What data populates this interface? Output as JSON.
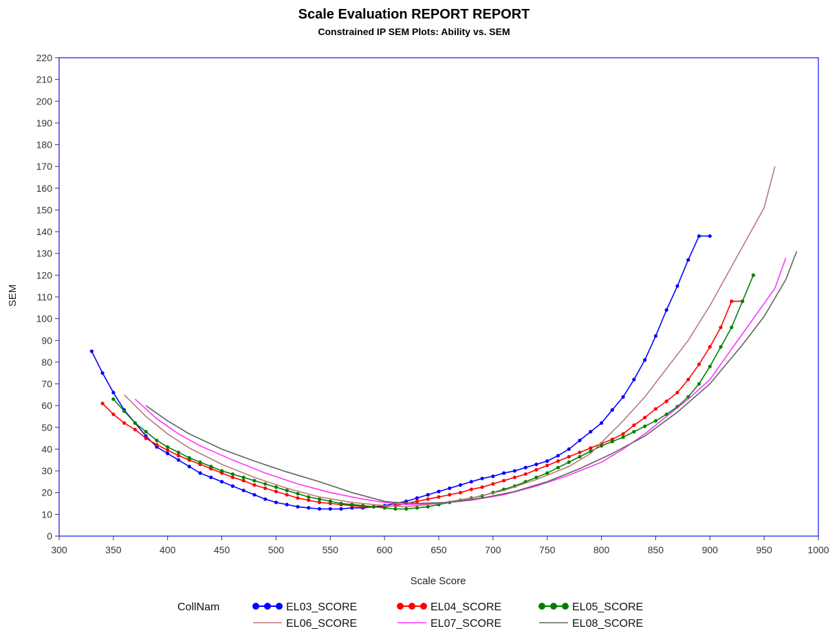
{
  "chart_data": {
    "type": "line",
    "title": "Scale Evaluation REPORT REPORT",
    "subtitle": "Constrained IP SEM Plots: Ability vs. SEM",
    "xlabel": "Scale Score",
    "ylabel": "SEM",
    "xlim": [
      300,
      1000
    ],
    "ylim": [
      0,
      220
    ],
    "xticks": [
      "300",
      "350",
      "400",
      "450",
      "500",
      "550",
      "600",
      "650",
      "700",
      "750",
      "800",
      "850",
      "900",
      "950",
      "1000"
    ],
    "yticks": [
      "0",
      "10",
      "20",
      "30",
      "40",
      "50",
      "60",
      "70",
      "80",
      "90",
      "100",
      "110",
      "120",
      "130",
      "140",
      "150",
      "160",
      "170",
      "180",
      "190",
      "200",
      "210",
      "220"
    ],
    "grid": false,
    "legend": {
      "placement": "bottom",
      "title": "CollNam"
    },
    "series": [
      {
        "name": "EL03_SCORE",
        "color": "#0000ff",
        "markers": true,
        "points": [
          [
            330,
            85
          ],
          [
            340,
            75
          ],
          [
            350,
            66
          ],
          [
            360,
            58
          ],
          [
            370,
            52
          ],
          [
            380,
            46
          ],
          [
            390,
            41
          ],
          [
            400,
            38
          ],
          [
            410,
            35
          ],
          [
            420,
            32
          ],
          [
            430,
            29
          ],
          [
            440,
            27
          ],
          [
            450,
            25
          ],
          [
            460,
            23
          ],
          [
            470,
            21
          ],
          [
            480,
            19
          ],
          [
            490,
            17
          ],
          [
            500,
            15.5
          ],
          [
            510,
            14.5
          ],
          [
            520,
            13.5
          ],
          [
            530,
            13
          ],
          [
            540,
            12.5
          ],
          [
            550,
            12.5
          ],
          [
            560,
            12.5
          ],
          [
            570,
            13
          ],
          [
            580,
            13
          ],
          [
            590,
            13.5
          ],
          [
            600,
            14
          ],
          [
            610,
            15
          ],
          [
            620,
            16
          ],
          [
            630,
            17.5
          ],
          [
            640,
            19
          ],
          [
            650,
            20.5
          ],
          [
            660,
            22
          ],
          [
            670,
            23.5
          ],
          [
            680,
            25
          ],
          [
            690,
            26.5
          ],
          [
            700,
            27.5
          ],
          [
            710,
            29
          ],
          [
            720,
            30
          ],
          [
            730,
            31.5
          ],
          [
            740,
            33
          ],
          [
            750,
            34.5
          ],
          [
            760,
            37
          ],
          [
            770,
            40
          ],
          [
            780,
            44
          ],
          [
            790,
            48
          ],
          [
            800,
            52
          ],
          [
            810,
            58
          ],
          [
            820,
            64
          ],
          [
            830,
            72
          ],
          [
            840,
            81
          ],
          [
            850,
            92
          ],
          [
            860,
            104
          ],
          [
            870,
            115
          ],
          [
            880,
            127
          ],
          [
            890,
            138
          ],
          [
            900,
            138
          ]
        ]
      },
      {
        "name": "EL04_SCORE",
        "color": "#ff0000",
        "markers": true,
        "points": [
          [
            340,
            61
          ],
          [
            350,
            56
          ],
          [
            360,
            52
          ],
          [
            370,
            49
          ],
          [
            380,
            45
          ],
          [
            390,
            42
          ],
          [
            400,
            39.5
          ],
          [
            410,
            37
          ],
          [
            420,
            35
          ],
          [
            430,
            33
          ],
          [
            440,
            31
          ],
          [
            450,
            29
          ],
          [
            460,
            27
          ],
          [
            470,
            25.5
          ],
          [
            480,
            23.5
          ],
          [
            490,
            22
          ],
          [
            500,
            20.5
          ],
          [
            510,
            19
          ],
          [
            520,
            17.5
          ],
          [
            530,
            16.5
          ],
          [
            540,
            15.5
          ],
          [
            550,
            15
          ],
          [
            560,
            14.5
          ],
          [
            570,
            14
          ],
          [
            580,
            13.5
          ],
          [
            590,
            13.5
          ],
          [
            600,
            13.5
          ],
          [
            610,
            14
          ],
          [
            620,
            15
          ],
          [
            630,
            16
          ],
          [
            640,
            17
          ],
          [
            650,
            18
          ],
          [
            660,
            19
          ],
          [
            670,
            20
          ],
          [
            680,
            21.5
          ],
          [
            690,
            22.5
          ],
          [
            700,
            24
          ],
          [
            710,
            25.5
          ],
          [
            720,
            27
          ],
          [
            730,
            28.5
          ],
          [
            740,
            30.5
          ],
          [
            750,
            32.5
          ],
          [
            760,
            34.5
          ],
          [
            770,
            36.5
          ],
          [
            780,
            38.5
          ],
          [
            790,
            40.5
          ],
          [
            800,
            42.5
          ],
          [
            810,
            44.5
          ],
          [
            820,
            47
          ],
          [
            830,
            51
          ],
          [
            840,
            54.5
          ],
          [
            850,
            58.5
          ],
          [
            860,
            62
          ],
          [
            870,
            66
          ],
          [
            880,
            72
          ],
          [
            890,
            79
          ],
          [
            900,
            87
          ],
          [
            910,
            96
          ],
          [
            920,
            108
          ],
          [
            930,
            108
          ]
        ]
      },
      {
        "name": "EL05_SCORE",
        "color": "#008000",
        "markers": true,
        "points": [
          [
            350,
            63
          ],
          [
            360,
            57.5
          ],
          [
            370,
            52
          ],
          [
            380,
            48
          ],
          [
            390,
            44
          ],
          [
            400,
            41
          ],
          [
            410,
            38.5
          ],
          [
            420,
            36
          ],
          [
            430,
            34
          ],
          [
            440,
            32
          ],
          [
            450,
            30
          ],
          [
            460,
            28.5
          ],
          [
            470,
            27
          ],
          [
            480,
            25.5
          ],
          [
            490,
            24
          ],
          [
            500,
            22.5
          ],
          [
            510,
            21
          ],
          [
            520,
            19.5
          ],
          [
            530,
            18
          ],
          [
            540,
            17
          ],
          [
            550,
            16
          ],
          [
            560,
            15
          ],
          [
            570,
            14.5
          ],
          [
            580,
            14
          ],
          [
            590,
            13.5
          ],
          [
            600,
            13
          ],
          [
            610,
            12.5
          ],
          [
            620,
            12.5
          ],
          [
            630,
            13
          ],
          [
            640,
            13.5
          ],
          [
            650,
            14.5
          ],
          [
            660,
            15.5
          ],
          [
            670,
            16.5
          ],
          [
            680,
            17.5
          ],
          [
            690,
            18.5
          ],
          [
            700,
            20
          ],
          [
            710,
            21.5
          ],
          [
            720,
            23
          ],
          [
            730,
            25
          ],
          [
            740,
            27
          ],
          [
            750,
            29
          ],
          [
            760,
            31.5
          ],
          [
            770,
            34
          ],
          [
            780,
            36.5
          ],
          [
            790,
            39
          ],
          [
            800,
            41.5
          ],
          [
            810,
            43.5
          ],
          [
            820,
            45.5
          ],
          [
            830,
            48
          ],
          [
            840,
            50.5
          ],
          [
            850,
            53
          ],
          [
            860,
            56
          ],
          [
            870,
            59.5
          ],
          [
            880,
            64
          ],
          [
            890,
            70
          ],
          [
            900,
            78
          ],
          [
            910,
            87
          ],
          [
            920,
            96
          ],
          [
            930,
            108
          ],
          [
            940,
            120
          ]
        ]
      },
      {
        "name": "EL06_SCORE",
        "color": "#b87878",
        "markers": false,
        "points": [
          [
            360,
            65
          ],
          [
            380,
            55
          ],
          [
            400,
            47
          ],
          [
            420,
            40.5
          ],
          [
            450,
            33
          ],
          [
            480,
            27
          ],
          [
            510,
            22
          ],
          [
            540,
            18
          ],
          [
            570,
            15.5
          ],
          [
            600,
            14
          ],
          [
            620,
            13.5
          ],
          [
            650,
            15
          ],
          [
            680,
            17.5
          ],
          [
            710,
            21
          ],
          [
            740,
            26
          ],
          [
            770,
            32
          ],
          [
            790,
            38
          ],
          [
            800,
            43
          ],
          [
            820,
            53
          ],
          [
            840,
            64
          ],
          [
            860,
            77
          ],
          [
            880,
            90
          ],
          [
            900,
            106
          ],
          [
            920,
            124
          ],
          [
            940,
            142
          ],
          [
            950,
            151
          ],
          [
            960,
            170
          ]
        ]
      },
      {
        "name": "EL07_SCORE",
        "color": "#ff33ff",
        "markers": false,
        "points": [
          [
            370,
            63
          ],
          [
            390,
            54
          ],
          [
            410,
            47
          ],
          [
            430,
            41.5
          ],
          [
            460,
            35
          ],
          [
            490,
            29
          ],
          [
            520,
            24
          ],
          [
            550,
            20
          ],
          [
            580,
            17
          ],
          [
            600,
            15.5
          ],
          [
            620,
            14.5
          ],
          [
            650,
            15
          ],
          [
            680,
            16.5
          ],
          [
            710,
            19
          ],
          [
            740,
            23
          ],
          [
            770,
            28
          ],
          [
            800,
            34
          ],
          [
            820,
            40
          ],
          [
            840,
            47
          ],
          [
            860,
            55
          ],
          [
            880,
            63
          ],
          [
            900,
            72
          ],
          [
            920,
            86
          ],
          [
            940,
            100
          ],
          [
            960,
            114
          ],
          [
            970,
            128
          ]
        ]
      },
      {
        "name": "EL08_SCORE",
        "color": "#606060",
        "markers": false,
        "points": [
          [
            380,
            60
          ],
          [
            400,
            53
          ],
          [
            420,
            47
          ],
          [
            450,
            40
          ],
          [
            480,
            34.5
          ],
          [
            510,
            29.5
          ],
          [
            540,
            25
          ],
          [
            570,
            20
          ],
          [
            600,
            16
          ],
          [
            610,
            15.5
          ],
          [
            630,
            15
          ],
          [
            660,
            15.5
          ],
          [
            690,
            17.5
          ],
          [
            720,
            20.5
          ],
          [
            750,
            25
          ],
          [
            780,
            31
          ],
          [
            810,
            38
          ],
          [
            840,
            46
          ],
          [
            870,
            57
          ],
          [
            900,
            70
          ],
          [
            930,
            88
          ],
          [
            950,
            101
          ],
          [
            970,
            118
          ],
          [
            980,
            131
          ]
        ]
      }
    ]
  }
}
